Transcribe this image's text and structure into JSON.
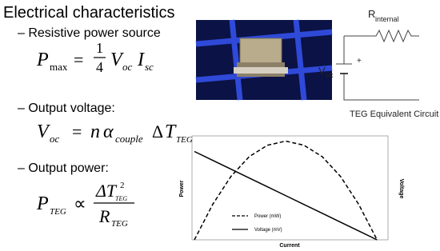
{
  "title": "Electrical characteristics",
  "bullets": [
    "– Resistive power source",
    "– Output voltage:",
    "– Output power:"
  ],
  "equations": {
    "pmax": [
      "P",
      "max",
      "=",
      "1",
      "4",
      "V",
      "oc",
      "I",
      "sc"
    ],
    "voc": [
      "V",
      "oc",
      "=",
      "n",
      "α",
      "couple",
      "Δ",
      "T",
      "TEG"
    ],
    "pteg": [
      "P",
      "TEG",
      "∝",
      "ΔT",
      "TEG",
      "2",
      "R",
      "TEG"
    ]
  },
  "circuit": {
    "resistor_label": "R",
    "resistor_sub": "internal",
    "source_label": "V",
    "source_sub": "oc",
    "plus": "+",
    "caption": "TEG Equivalent Circuit"
  },
  "chart_data": {
    "type": "line",
    "x_label": "Current",
    "y_label": "Power",
    "y2_label": "Voltage",
    "x": [
      0,
      0.1,
      0.2,
      0.3,
      0.4,
      0.5,
      0.6,
      0.7,
      0.8,
      0.9,
      1
    ],
    "xlim": [
      0,
      1.06
    ],
    "ylim": [
      0,
      100
    ],
    "y2lim": [
      0,
      100
    ],
    "legend": "lower-left",
    "series": [
      {
        "name": "Power (mW)",
        "color": "#000000",
        "dash": "dashed",
        "values": [
          0,
          34,
          61,
          80,
          91,
          95,
          91,
          80,
          61,
          34,
          0
        ]
      },
      {
        "name": "Voltage (mV)",
        "color": "#000000",
        "dash": "solid",
        "axis": "y2",
        "values": [
          85,
          76.5,
          68,
          59.5,
          51,
          42.5,
          34,
          25.5,
          17,
          8.5,
          0
        ]
      }
    ]
  }
}
